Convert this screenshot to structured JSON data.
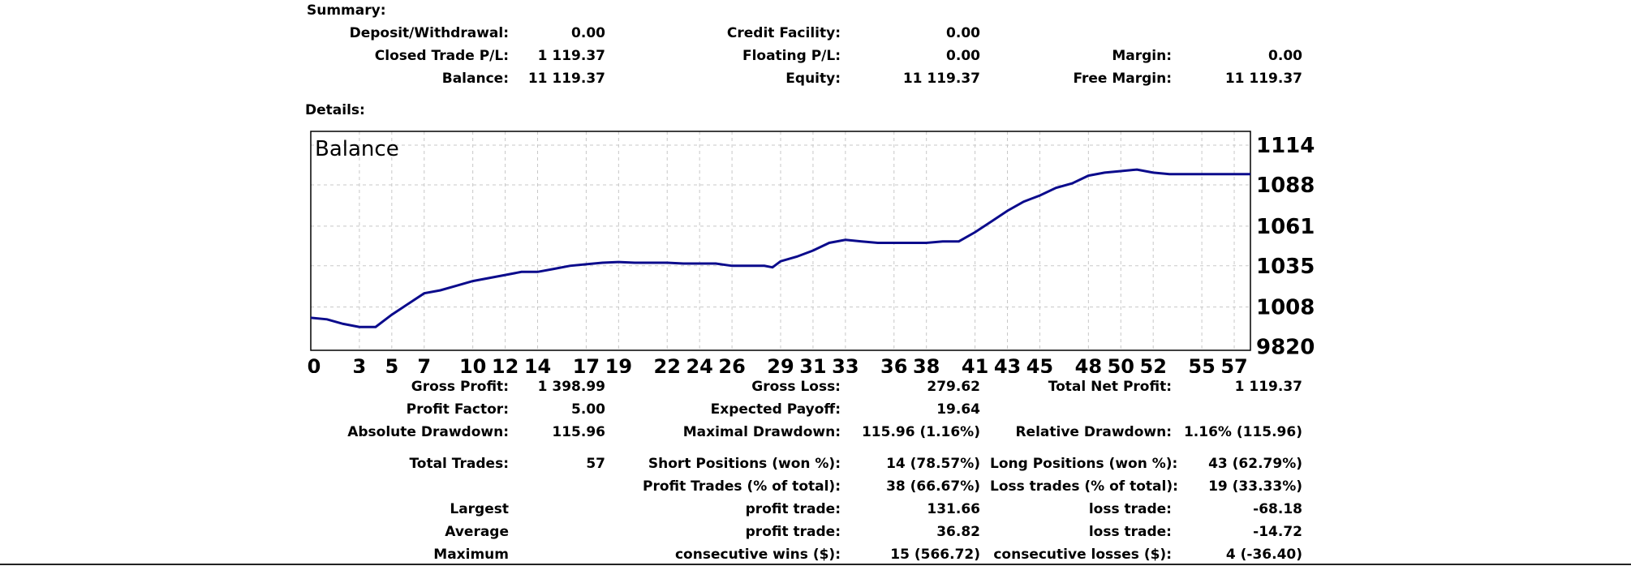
{
  "summary": {
    "heading": "Summary:",
    "deposit_label": "Deposit/Withdrawal:",
    "deposit_value": "0.00",
    "credit_label": "Credit Facility:",
    "credit_value": "0.00",
    "closed_pl_label": "Closed Trade P/L:",
    "closed_pl_value": "1 119.37",
    "floating_pl_label": "Floating P/L:",
    "floating_pl_value": "0.00",
    "margin_label": "Margin:",
    "margin_value": "0.00",
    "balance_label": "Balance:",
    "balance_value": "11 119.37",
    "equity_label": "Equity:",
    "equity_value": "11 119.37",
    "free_margin_label": "Free Margin:",
    "free_margin_value": "11 119.37"
  },
  "details": {
    "heading": "Details:",
    "gross_profit_label": "Gross Profit:",
    "gross_profit_value": "1 398.99",
    "gross_loss_label": "Gross Loss:",
    "gross_loss_value": "279.62",
    "total_net_profit_label": "Total Net Profit:",
    "total_net_profit_value": "1 119.37",
    "profit_factor_label": "Profit Factor:",
    "profit_factor_value": "5.00",
    "expected_payoff_label": "Expected Payoff:",
    "expected_payoff_value": "19.64",
    "absolute_drawdown_label": "Absolute Drawdown:",
    "absolute_drawdown_value": "115.96",
    "maximal_drawdown_label": "Maximal Drawdown:",
    "maximal_drawdown_value": "115.96 (1.16%)",
    "relative_drawdown_label": "Relative Drawdown:",
    "relative_drawdown_value": "1.16% (115.96)",
    "total_trades_label": "Total Trades:",
    "total_trades_value": "57",
    "short_positions_label": "Short Positions (won %):",
    "short_positions_value": "14 (78.57%)",
    "long_positions_label": "Long Positions (won %):",
    "long_positions_value": "43 (62.79%)",
    "profit_trades_label": "Profit Trades (% of total):",
    "profit_trades_value": "38 (66.67%)",
    "loss_trades_label": "Loss trades (% of total):",
    "loss_trades_value": "19 (33.33%)",
    "largest_label": "Largest",
    "largest_profit_label": "profit trade:",
    "largest_profit_value": "131.66",
    "largest_loss_label": "loss trade:",
    "largest_loss_value": "-68.18",
    "average_label": "Average",
    "average_profit_label": "profit trade:",
    "average_profit_value": "36.82",
    "average_loss_label": "loss trade:",
    "average_loss_value": "-14.72",
    "maximum_label": "Maximum",
    "max_wins_label": "consecutive wins ($):",
    "max_wins_value": "15 (566.72)",
    "max_losses_label": "consecutive losses ($):",
    "max_losses_value": "4 (-36.40)"
  },
  "chart_data": {
    "type": "line",
    "title": "Balance",
    "xlabel": "",
    "ylabel": "",
    "grid": true,
    "xlim": [
      0,
      58
    ],
    "ylim": [
      9797,
      1123
    ],
    "x_ticks": [
      0,
      3,
      5,
      7,
      10,
      12,
      14,
      17,
      19,
      22,
      24,
      26,
      29,
      31,
      33,
      36,
      38,
      41,
      43,
      45,
      48,
      50,
      52,
      55,
      57
    ],
    "x_tick_labels": [
      "0",
      "3",
      "5",
      "7",
      "10",
      "12",
      "14",
      "17",
      "19",
      "22",
      "24",
      "26",
      "29",
      "31",
      "33",
      "36",
      "38",
      "41",
      "43",
      "45",
      "48",
      "50",
      "52",
      "55",
      "57"
    ],
    "y_ticks": [
      9820,
      1008,
      1035,
      1061,
      1088,
      1114
    ],
    "y_tick_labels": [
      "9820",
      "1008",
      "1035",
      "1061",
      "1088",
      "1114"
    ],
    "series": [
      {
        "name": "Balance",
        "color": "#0b0b8c",
        "x": [
          0,
          1,
          2,
          3,
          4,
          5,
          6,
          7,
          8,
          9,
          10,
          11,
          12,
          13,
          14,
          15,
          16,
          17,
          18,
          19,
          20,
          21,
          22,
          23,
          24,
          25,
          26,
          27,
          28,
          28.5,
          29,
          30,
          31,
          32,
          33,
          34,
          35,
          36,
          37,
          38,
          39,
          40,
          41,
          42,
          43,
          44,
          45,
          46,
          47,
          48,
          49,
          50,
          51,
          52,
          53,
          54,
          55,
          56,
          57,
          58
        ],
        "y": [
          1001,
          1000,
          997,
          995,
          995,
          1003,
          1010,
          1017,
          1019,
          1022,
          1025,
          1027,
          1029,
          1031,
          1031,
          1033,
          1035,
          1036,
          1037,
          1037.5,
          1037,
          1037,
          1037,
          1036.5,
          1036.5,
          1036.5,
          1035,
          1035,
          1035,
          1034,
          1038,
          1041,
          1045,
          1050,
          1052,
          1051,
          1050,
          1050,
          1050,
          1050,
          1051,
          1051,
          1057,
          1064,
          1071,
          1077,
          1081,
          1086,
          1089,
          1094,
          1096,
          1097,
          1098,
          1096,
          1095,
          1095,
          1095,
          1095,
          1095,
          1095
        ]
      }
    ]
  }
}
